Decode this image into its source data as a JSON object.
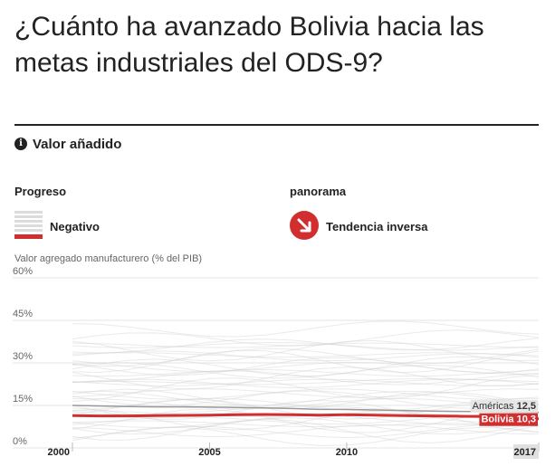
{
  "header": {
    "title": "¿Cuánto ha avanzado Bolivia hacia las metas industriales del ODS-9?"
  },
  "section": {
    "label": "Valor añadido",
    "info_icon": "info-icon"
  },
  "progress": {
    "heading": "Progreso",
    "legend_label": "Negativo"
  },
  "panorama": {
    "heading": "panorama",
    "legend_label": "Tendencia inversa",
    "icon": "arrow-down-right-icon"
  },
  "colors": {
    "accent_red": "#d12f2f",
    "background_lines": "#d0d0d0",
    "americas_line": "#9a9a9a"
  },
  "chart_data": {
    "type": "line",
    "ylabel": "Valor agregado manufacturero (% del PIB)",
    "ylim": [
      0,
      60
    ],
    "y_ticks": [
      "0%",
      "15%",
      "30%",
      "45%",
      "60%"
    ],
    "y_tick_values": [
      0,
      15,
      30,
      45,
      60
    ],
    "x_ticks": [
      "2000",
      "2005",
      "2010",
      "2017"
    ],
    "x_tick_values": [
      2000,
      2005,
      2010,
      2017
    ],
    "xlim": [
      2000,
      2017
    ],
    "grid": true,
    "series": [
      {
        "name": "Bolivia",
        "display_value": "10,3",
        "highlight": true,
        "x": [
          2000,
          2001,
          2002,
          2003,
          2004,
          2005,
          2006,
          2007,
          2008,
          2009,
          2010,
          2011,
          2012,
          2013,
          2014,
          2015,
          2016,
          2017
        ],
        "values": [
          11.4,
          11.3,
          11.3,
          11.4,
          11.5,
          11.6,
          11.7,
          11.8,
          11.7,
          11.6,
          11.7,
          11.6,
          11.4,
          11.3,
          11.2,
          11.1,
          10.8,
          10.3
        ]
      },
      {
        "name": "Américas",
        "display_value": "12,5",
        "highlight": false,
        "x": [
          2000,
          2001,
          2002,
          2003,
          2004,
          2005,
          2006,
          2007,
          2008,
          2009,
          2010,
          2011,
          2012,
          2013,
          2014,
          2015,
          2016,
          2017
        ],
        "values": [
          15.0,
          14.8,
          14.6,
          14.5,
          14.5,
          14.4,
          14.3,
          14.1,
          13.9,
          13.6,
          13.6,
          13.4,
          13.2,
          13.0,
          12.9,
          12.8,
          12.6,
          12.5
        ]
      }
    ]
  }
}
